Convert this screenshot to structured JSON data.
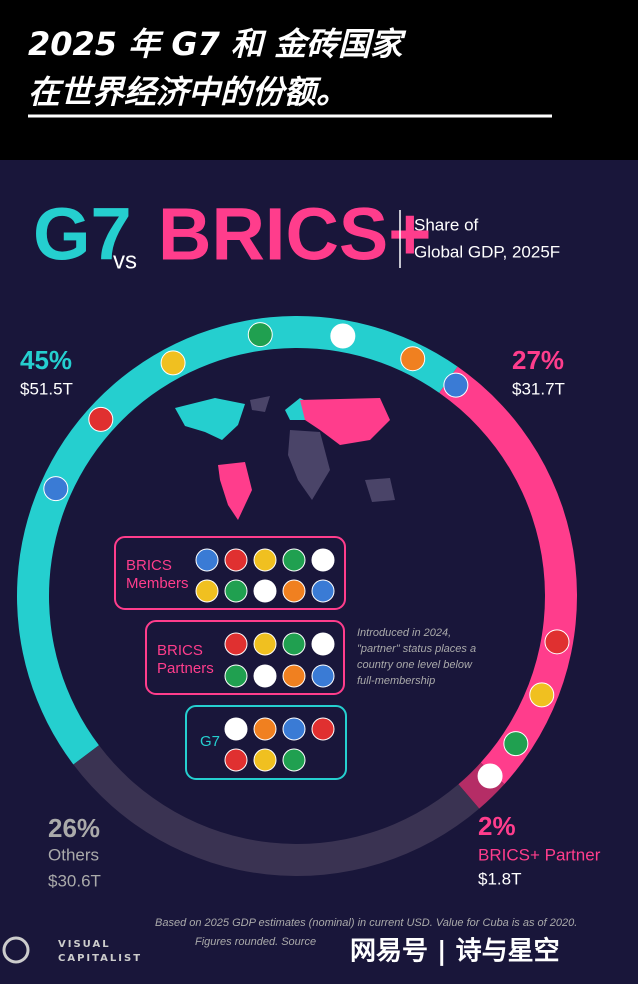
{
  "header": {
    "title": [
      "2025 年 G7 和 金砖国家",
      "在世界经济中的份额。"
    ]
  },
  "chart_data": {
    "type": "donut",
    "title": [
      "G7",
      "vs",
      "BRICS+"
    ],
    "subtitle": [
      "Share of",
      "Global GDP, 2025F"
    ],
    "categories": [
      null,
      null,
      "BRICS+ Partner",
      "Others"
    ],
    "values": [
      45,
      27,
      2,
      26
    ],
    "value_labels": [
      "45%",
      "27%",
      "2%",
      "26%"
    ],
    "amount_labels": [
      "$51.5T",
      "$31.7T",
      "$1.8T",
      "$30.6T"
    ],
    "colors": [
      "#25cfcf",
      "#ff3d8c",
      "#b52d66",
      "#3a3352"
    ]
  },
  "groups": [
    [
      "BRICS",
      "Members"
    ],
    [
      "BRICS",
      "Partners"
    ],
    [
      "G7"
    ]
  ],
  "note": [
    "Introduced in 2024,",
    "\"partner\" status places a",
    "country one level below",
    "full-membership"
  ],
  "footer": [
    "Based on 2025 GDP estimates (nominal) in current USD. Value for Cuba is as of 2020.",
    "Figures rounded. Source"
  ],
  "brand": [
    "VISUAL",
    "CAPITALIST"
  ],
  "watermark": "网易号 | 诗与星空"
}
